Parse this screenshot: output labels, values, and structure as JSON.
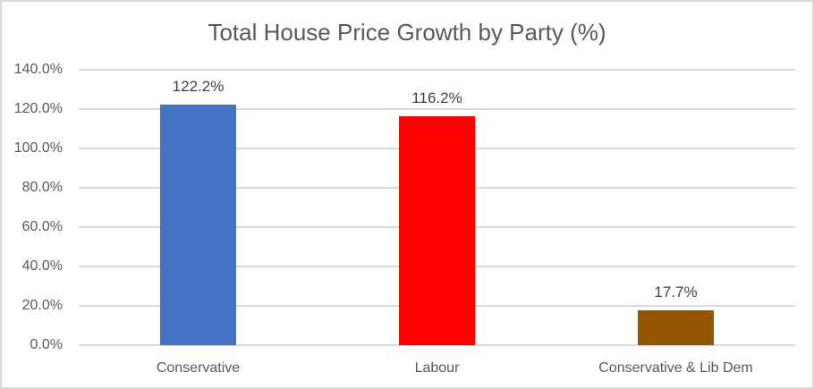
{
  "chart_data": {
    "type": "bar",
    "title": "Total House Price Growth by Party (%)",
    "categories": [
      "Conservative",
      "Labour",
      "Conservative & Lib Dem"
    ],
    "values": [
      122.2,
      116.2,
      17.7
    ],
    "data_labels": [
      "122.2%",
      "116.2%",
      "17.7%"
    ],
    "bar_colors": [
      "#4472C4",
      "#FF0000",
      "#965502"
    ],
    "xlabel": "",
    "ylabel": "",
    "ylim": [
      0,
      140
    ],
    "grid": true,
    "legend": false,
    "y_ticks": [
      {
        "label": "0.0%",
        "value": 0
      },
      {
        "label": "20.0%",
        "value": 20
      },
      {
        "label": "40.0%",
        "value": 40
      },
      {
        "label": "60.0%",
        "value": 60
      },
      {
        "label": "80.0%",
        "value": 80
      },
      {
        "label": "100.0%",
        "value": 100
      },
      {
        "label": "120.0%",
        "value": 120
      },
      {
        "label": "140.0%",
        "value": 140
      }
    ],
    "colors": {
      "title_text": "#595959",
      "axis_text": "#595959",
      "data_label_text": "#404040",
      "gridlines": "#D9D9D9",
      "frame_border": "#D9D9D9",
      "background": "#FFFFFF"
    }
  }
}
